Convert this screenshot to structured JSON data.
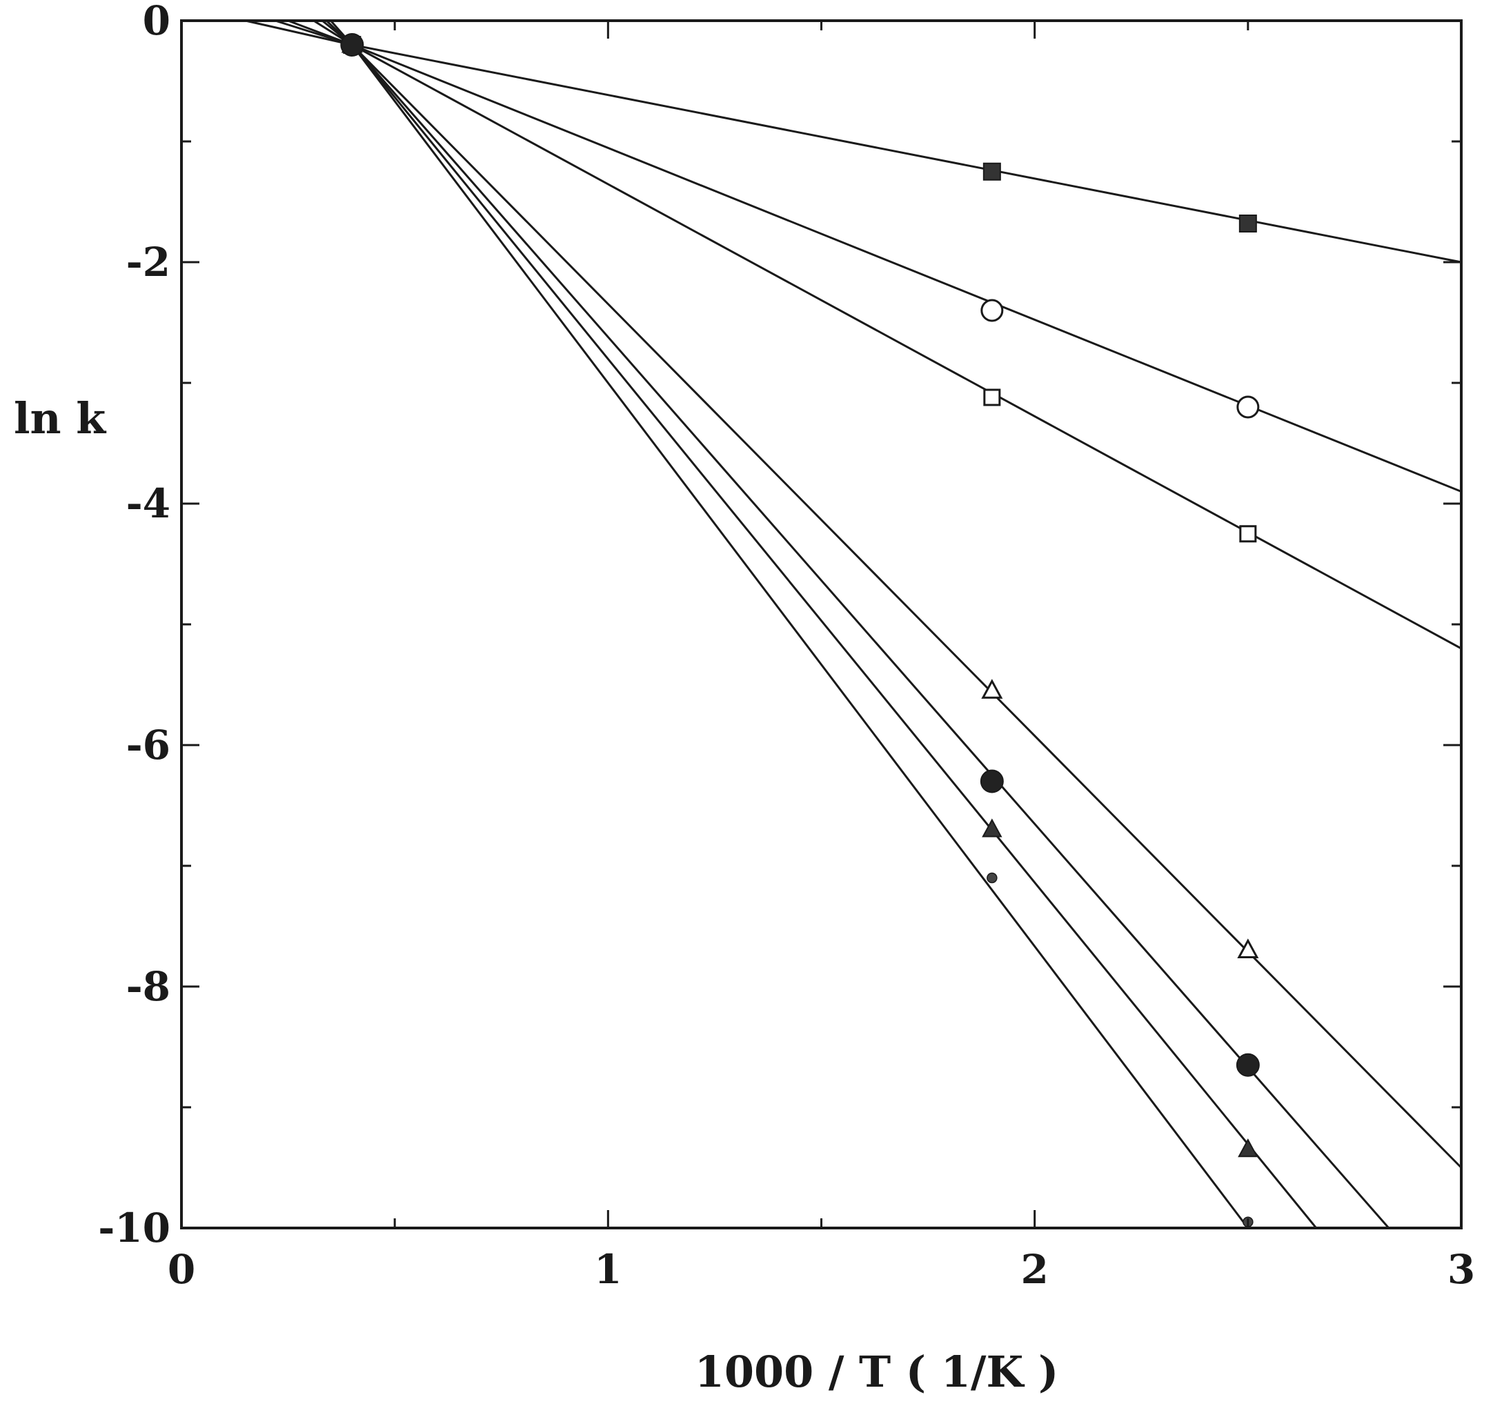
{
  "chart_data": {
    "type": "line",
    "title": "",
    "xlabel": "1000 / T ( 1/K )",
    "ylabel": "ln k",
    "xlim": [
      0,
      3
    ],
    "ylim": [
      -10,
      0
    ],
    "x_ticks": [
      0,
      1,
      2,
      3
    ],
    "x_tick_labels": [
      "0",
      "1",
      "2",
      "3"
    ],
    "y_ticks": [
      0,
      -2,
      -4,
      -6,
      -8,
      -10
    ],
    "y_tick_labels": [
      "0",
      "-2",
      "-4",
      "-6",
      "-8",
      "-10"
    ],
    "grid": false,
    "legend": "none",
    "series": [
      {
        "marker": "filled-square",
        "line": [
          [
            0.15,
            0
          ],
          [
            0.4,
            -0.2
          ],
          [
            3.0,
            -2.0
          ]
        ],
        "points": [
          [
            0.4,
            -0.2
          ],
          [
            1.9,
            -1.25
          ],
          [
            2.5,
            -1.68
          ]
        ]
      },
      {
        "marker": "open-circle",
        "line": [
          [
            0.22,
            0
          ],
          [
            0.4,
            -0.2
          ],
          [
            3.0,
            -3.9
          ]
        ],
        "points": [
          [
            0.4,
            -0.2
          ],
          [
            1.9,
            -2.4
          ],
          [
            2.5,
            -3.2
          ]
        ]
      },
      {
        "marker": "open-square",
        "line": [
          [
            0.25,
            0
          ],
          [
            0.4,
            -0.2
          ],
          [
            3.0,
            -5.2
          ]
        ],
        "points": [
          [
            0.4,
            -0.2
          ],
          [
            1.9,
            -3.12
          ],
          [
            2.5,
            -4.25
          ]
        ]
      },
      {
        "marker": "open-triangle",
        "line": [
          [
            0.31,
            0
          ],
          [
            0.4,
            -0.2
          ],
          [
            3.0,
            -9.5
          ]
        ],
        "points": [
          [
            0.4,
            -0.2
          ],
          [
            1.9,
            -5.55
          ],
          [
            2.5,
            -7.7
          ]
        ]
      },
      {
        "marker": "filled-circle",
        "line": [
          [
            0.33,
            0
          ],
          [
            0.4,
            -0.2
          ],
          [
            2.83,
            -10
          ]
        ],
        "points": [
          [
            0.4,
            -0.2
          ],
          [
            1.9,
            -6.3
          ],
          [
            2.5,
            -8.65
          ]
        ]
      },
      {
        "marker": "filled-triangle",
        "line": [
          [
            0.34,
            0
          ],
          [
            0.4,
            -0.2
          ],
          [
            2.66,
            -10
          ]
        ],
        "points": [
          [
            0.4,
            -0.2
          ],
          [
            1.9,
            -6.7
          ],
          [
            2.5,
            -9.35
          ]
        ]
      },
      {
        "marker": "small-dot",
        "line": [
          [
            0.35,
            0
          ],
          [
            0.4,
            -0.2
          ],
          [
            2.5,
            -10
          ]
        ],
        "points": [
          [
            0.4,
            -0.2
          ],
          [
            1.9,
            -7.1
          ],
          [
            2.5,
            -9.95
          ]
        ]
      }
    ]
  }
}
